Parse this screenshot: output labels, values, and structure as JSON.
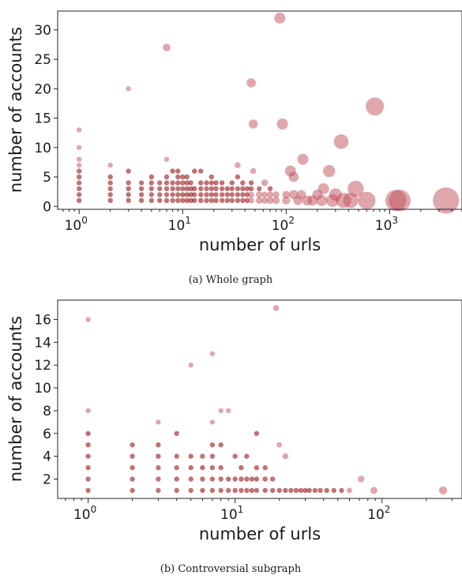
{
  "colors": {
    "marker": "#8b0000",
    "marker_light": "#c0505a",
    "axis": "#222222"
  },
  "chart_data": [
    {
      "type": "scatter",
      "caption": "(a) Whole graph",
      "xlabel": "number of urls",
      "ylabel": "number of accounts",
      "xscale": "log",
      "xlim": [
        0.62,
        5000
      ],
      "ylim": [
        -0.5,
        33.2
      ],
      "xticks": [
        {
          "value": 1,
          "base": "10",
          "exp": "0"
        },
        {
          "value": 10,
          "base": "10",
          "exp": "1"
        },
        {
          "value": 100,
          "base": "10",
          "exp": "2"
        },
        {
          "value": 1000,
          "base": "10",
          "exp": "3"
        }
      ],
      "yticks": [
        0,
        5,
        10,
        15,
        20,
        25,
        30
      ],
      "grid": false,
      "legend": "none",
      "points": [
        [
          1,
          1,
          1
        ],
        [
          1,
          2,
          1
        ],
        [
          1,
          3,
          1
        ],
        [
          1,
          4,
          1
        ],
        [
          1,
          5,
          1
        ],
        [
          1,
          6,
          1
        ],
        [
          1,
          7,
          1
        ],
        [
          1,
          8,
          1
        ],
        [
          1,
          10,
          1
        ],
        [
          1,
          13,
          1
        ],
        [
          2,
          1,
          1
        ],
        [
          2,
          2,
          1
        ],
        [
          2,
          3,
          1
        ],
        [
          2,
          4,
          1
        ],
        [
          2,
          5,
          1
        ],
        [
          2,
          7,
          1
        ],
        [
          3,
          1,
          1
        ],
        [
          3,
          2,
          1
        ],
        [
          3,
          3,
          1
        ],
        [
          3,
          4,
          1
        ],
        [
          3,
          6,
          1
        ],
        [
          3,
          20,
          1
        ],
        [
          4,
          1,
          1
        ],
        [
          4,
          2,
          1
        ],
        [
          4,
          3,
          1
        ],
        [
          4,
          4,
          1
        ],
        [
          5,
          1,
          1
        ],
        [
          5,
          2,
          1
        ],
        [
          5,
          3,
          1
        ],
        [
          5,
          4,
          1
        ],
        [
          5,
          5,
          1
        ],
        [
          6,
          1,
          1
        ],
        [
          6,
          2,
          1
        ],
        [
          6,
          3,
          1
        ],
        [
          6,
          4,
          1
        ],
        [
          7,
          1,
          1
        ],
        [
          7,
          2,
          1
        ],
        [
          7,
          3,
          1
        ],
        [
          7,
          4,
          1
        ],
        [
          7,
          5,
          1
        ],
        [
          7,
          8,
          1
        ],
        [
          7,
          27,
          1.5
        ],
        [
          8,
          1,
          1
        ],
        [
          8,
          2,
          1
        ],
        [
          8,
          3,
          1
        ],
        [
          8,
          4,
          1
        ],
        [
          8,
          6,
          1
        ],
        [
          9,
          1,
          1
        ],
        [
          9,
          2,
          1
        ],
        [
          9,
          3,
          1
        ],
        [
          9,
          4,
          1
        ],
        [
          9,
          5,
          1
        ],
        [
          9,
          6,
          1
        ],
        [
          10,
          1,
          1
        ],
        [
          10,
          2,
          1
        ],
        [
          10,
          3,
          1
        ],
        [
          10,
          4,
          1
        ],
        [
          10,
          5,
          1
        ],
        [
          11,
          1,
          1
        ],
        [
          11,
          2,
          1
        ],
        [
          11,
          3,
          1
        ],
        [
          11,
          4,
          1
        ],
        [
          11,
          5,
          1
        ],
        [
          12,
          1,
          1
        ],
        [
          12,
          2,
          1
        ],
        [
          12,
          3,
          1
        ],
        [
          12,
          4,
          1
        ],
        [
          13,
          1,
          1
        ],
        [
          13,
          2,
          1
        ],
        [
          13,
          3,
          1
        ],
        [
          13,
          6,
          1
        ],
        [
          15,
          1,
          1
        ],
        [
          15,
          2,
          1
        ],
        [
          15,
          3,
          1
        ],
        [
          15,
          4,
          1
        ],
        [
          15,
          6,
          1
        ],
        [
          17,
          1,
          1
        ],
        [
          17,
          2,
          1
        ],
        [
          17,
          3,
          1
        ],
        [
          17,
          4,
          1
        ],
        [
          19,
          1,
          1
        ],
        [
          19,
          2,
          1
        ],
        [
          19,
          3,
          1
        ],
        [
          19,
          4,
          1
        ],
        [
          19,
          5,
          1
        ],
        [
          21,
          1,
          1
        ],
        [
          21,
          2,
          1
        ],
        [
          21,
          3,
          1
        ],
        [
          21,
          4,
          1
        ],
        [
          24,
          1,
          1
        ],
        [
          24,
          2,
          1
        ],
        [
          24,
          3,
          1
        ],
        [
          24,
          4,
          1
        ],
        [
          27,
          1,
          1
        ],
        [
          27,
          2,
          1
        ],
        [
          27,
          3,
          1
        ],
        [
          30,
          1,
          1
        ],
        [
          30,
          2,
          1
        ],
        [
          30,
          3,
          1
        ],
        [
          30,
          4,
          1
        ],
        [
          34,
          1,
          1
        ],
        [
          34,
          2,
          1
        ],
        [
          34,
          3,
          1
        ],
        [
          34,
          5,
          1
        ],
        [
          34,
          7,
          1.2
        ],
        [
          38,
          1,
          1
        ],
        [
          38,
          2,
          1
        ],
        [
          38,
          3,
          1
        ],
        [
          38,
          4,
          1
        ],
        [
          42,
          1,
          1
        ],
        [
          42,
          2,
          1
        ],
        [
          42,
          3,
          1
        ],
        [
          46,
          1,
          1.2
        ],
        [
          46,
          2,
          1.2
        ],
        [
          46,
          3,
          1
        ],
        [
          46,
          4,
          1
        ],
        [
          46,
          21,
          1.8
        ],
        [
          48,
          6,
          1.2
        ],
        [
          48,
          14,
          1.8
        ],
        [
          55,
          1,
          1.3
        ],
        [
          55,
          2,
          1.3
        ],
        [
          55,
          3,
          1
        ],
        [
          62,
          1,
          1.3
        ],
        [
          62,
          2,
          1.2
        ],
        [
          62,
          4,
          1.3
        ],
        [
          70,
          1,
          1.4
        ],
        [
          70,
          2,
          1.3
        ],
        [
          70,
          3,
          1
        ],
        [
          80,
          1,
          1.4
        ],
        [
          80,
          2,
          1.3
        ],
        [
          87,
          32,
          2.2
        ],
        [
          92,
          14,
          2.2
        ],
        [
          100,
          1,
          1.6
        ],
        [
          100,
          2,
          1.5
        ],
        [
          110,
          6,
          2.2
        ],
        [
          118,
          5,
          2
        ],
        [
          118,
          2,
          1.8
        ],
        [
          130,
          1,
          1.8
        ],
        [
          140,
          2,
          1.8
        ],
        [
          145,
          8,
          2.2
        ],
        [
          160,
          1,
          2
        ],
        [
          180,
          1,
          2
        ],
        [
          200,
          2,
          2
        ],
        [
          220,
          1,
          2.2
        ],
        [
          230,
          3,
          2.2
        ],
        [
          260,
          6,
          2.4
        ],
        [
          280,
          1,
          2.5
        ],
        [
          300,
          2,
          2.5
        ],
        [
          340,
          11,
          2.9
        ],
        [
          360,
          1,
          3
        ],
        [
          420,
          1,
          3
        ],
        [
          470,
          3,
          3.2
        ],
        [
          600,
          1,
          3.5
        ],
        [
          720,
          17,
          3.6
        ],
        [
          1150,
          1,
          4.2
        ],
        [
          1250,
          1,
          4.3
        ],
        [
          3500,
          1,
          5.2
        ]
      ]
    },
    {
      "type": "scatter",
      "caption": "(b) Controversial subgraph",
      "xlabel": "number of urls",
      "ylabel": "number of accounts",
      "xscale": "log",
      "xlim": [
        0.62,
        350
      ],
      "ylim": [
        0.3,
        17.7
      ],
      "xticks": [
        {
          "value": 1,
          "base": "10",
          "exp": "0"
        },
        {
          "value": 10,
          "base": "10",
          "exp": "1"
        },
        {
          "value": 100,
          "base": "10",
          "exp": "2"
        }
      ],
      "yticks": [
        2,
        4,
        6,
        8,
        10,
        12,
        14,
        16
      ],
      "grid": false,
      "legend": "none",
      "points": [
        [
          1,
          1,
          1
        ],
        [
          1,
          2,
          1
        ],
        [
          1,
          3,
          1
        ],
        [
          1,
          4,
          1
        ],
        [
          1,
          5,
          1
        ],
        [
          1,
          6,
          1
        ],
        [
          1,
          8,
          1
        ],
        [
          1,
          16,
          1
        ],
        [
          2,
          1,
          1
        ],
        [
          2,
          2,
          1
        ],
        [
          2,
          3,
          1
        ],
        [
          2,
          4,
          1
        ],
        [
          2,
          5,
          1
        ],
        [
          3,
          1,
          1
        ],
        [
          3,
          2,
          1
        ],
        [
          3,
          3,
          1
        ],
        [
          3,
          4,
          1
        ],
        [
          3,
          5,
          1
        ],
        [
          3,
          7,
          1
        ],
        [
          4,
          1,
          1
        ],
        [
          4,
          2,
          1
        ],
        [
          4,
          3,
          1
        ],
        [
          4,
          4,
          1
        ],
        [
          4,
          6,
          1
        ],
        [
          5,
          1,
          1
        ],
        [
          5,
          2,
          1
        ],
        [
          5,
          3,
          1
        ],
        [
          5,
          4,
          1
        ],
        [
          5,
          12,
          1
        ],
        [
          6,
          1,
          1
        ],
        [
          6,
          2,
          1
        ],
        [
          6,
          3,
          1
        ],
        [
          6,
          4,
          1
        ],
        [
          7,
          1,
          1
        ],
        [
          7,
          2,
          1
        ],
        [
          7,
          3,
          1
        ],
        [
          7,
          4,
          1
        ],
        [
          7,
          5,
          1
        ],
        [
          7,
          7,
          1
        ],
        [
          7,
          13,
          1
        ],
        [
          8,
          1,
          1
        ],
        [
          8,
          2,
          1
        ],
        [
          8,
          3,
          1
        ],
        [
          8,
          5,
          1
        ],
        [
          8,
          8,
          1
        ],
        [
          9,
          1,
          1
        ],
        [
          9,
          2,
          1
        ],
        [
          9,
          8,
          1
        ],
        [
          10,
          1,
          1
        ],
        [
          10,
          2,
          1
        ],
        [
          10,
          4,
          1
        ],
        [
          11,
          1,
          1
        ],
        [
          11,
          2,
          1
        ],
        [
          11,
          3,
          1
        ],
        [
          12,
          1,
          1
        ],
        [
          12,
          2,
          1
        ],
        [
          12,
          4,
          1
        ],
        [
          13,
          1,
          1
        ],
        [
          13,
          2,
          1
        ],
        [
          14,
          1,
          1
        ],
        [
          14,
          2,
          1
        ],
        [
          14,
          3,
          1
        ],
        [
          14,
          6,
          1
        ],
        [
          16,
          1,
          1
        ],
        [
          16,
          2,
          1
        ],
        [
          16,
          3,
          1
        ],
        [
          18,
          1,
          1
        ],
        [
          18,
          2,
          1
        ],
        [
          19,
          17,
          1.2
        ],
        [
          20,
          1,
          1
        ],
        [
          20,
          5,
          1.1
        ],
        [
          22,
          1,
          1
        ],
        [
          22,
          4,
          1.2
        ],
        [
          24,
          1,
          1
        ],
        [
          26,
          1,
          1
        ],
        [
          28,
          1,
          1
        ],
        [
          30,
          1,
          1
        ],
        [
          32,
          1,
          1
        ],
        [
          35,
          1,
          1
        ],
        [
          38,
          1,
          1
        ],
        [
          42,
          1,
          1
        ],
        [
          47,
          1,
          1
        ],
        [
          53,
          1,
          1
        ],
        [
          60,
          1,
          1.1
        ],
        [
          72,
          2,
          1.3
        ],
        [
          88,
          1,
          1.4
        ],
        [
          260,
          1,
          1.6
        ]
      ]
    }
  ]
}
